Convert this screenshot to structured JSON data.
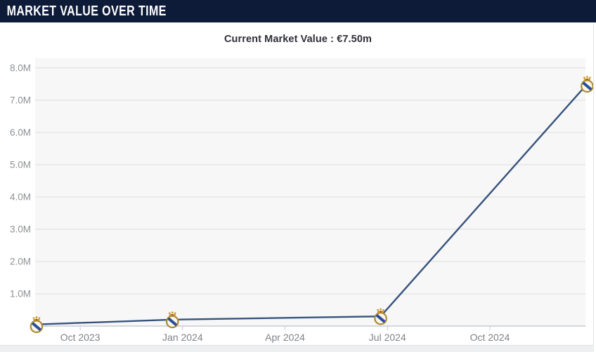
{
  "header": {
    "title": "MARKET VALUE OVER TIME"
  },
  "subtitle": {
    "current_market_value": "Current Market Value : €7.50m"
  },
  "colors": {
    "header_bg": "#0d1a38",
    "line": "#36527d",
    "plot_bg": "#f7f7f7",
    "gridline": "#dcdddf",
    "baseline": "#bcc3ca",
    "tick": "#c6c9cc",
    "y_label": "#8e9093",
    "x_label": "#7f8287",
    "crest_gold": "#ab8b33",
    "crest_band_blue": "#2c4d9e",
    "crest_crown_red": "#c0392b"
  },
  "chart_data": {
    "type": "line",
    "title": "Market Value Over Time",
    "unit": "€ million",
    "grid": "horizontal gridlines on, light-gray plot background, no legend",
    "legend": "none",
    "marker": "real-madrid-crest",
    "x_range_months_rel_oct2023": [
      -1.32,
      14.8
    ],
    "y_range": [
      0,
      8.3
    ],
    "x_ticks": [
      {
        "pos": 0,
        "label": "Oct 2023"
      },
      {
        "pos": 3,
        "label": "Jan 2024"
      },
      {
        "pos": 6,
        "label": "Apr 2024"
      },
      {
        "pos": 9,
        "label": "Jul 2024"
      },
      {
        "pos": 12,
        "label": "Oct 2024"
      }
    ],
    "y_ticks": [
      {
        "value": 1,
        "label": "1.0M"
      },
      {
        "value": 2,
        "label": "2.0M"
      },
      {
        "value": 3,
        "label": "3.0M"
      },
      {
        "value": 4,
        "label": "4.0M"
      },
      {
        "value": 5,
        "label": "5.0M"
      },
      {
        "value": 6,
        "label": "6.0M"
      },
      {
        "value": 7,
        "label": "7.0M"
      },
      {
        "value": 8,
        "label": "8.0M"
      }
    ],
    "series": [
      {
        "name": "Market value",
        "points": [
          {
            "x_months": -1.28,
            "date": "Sep 2023",
            "value_m": 0.05
          },
          {
            "x_months": 2.7,
            "date": "Dec 2023",
            "value_m": 0.2
          },
          {
            "x_months": 8.8,
            "date": "Jun 2024",
            "value_m": 0.3
          },
          {
            "x_months": 14.85,
            "date": "Dec 2024",
            "value_m": 7.5
          }
        ]
      }
    ]
  }
}
